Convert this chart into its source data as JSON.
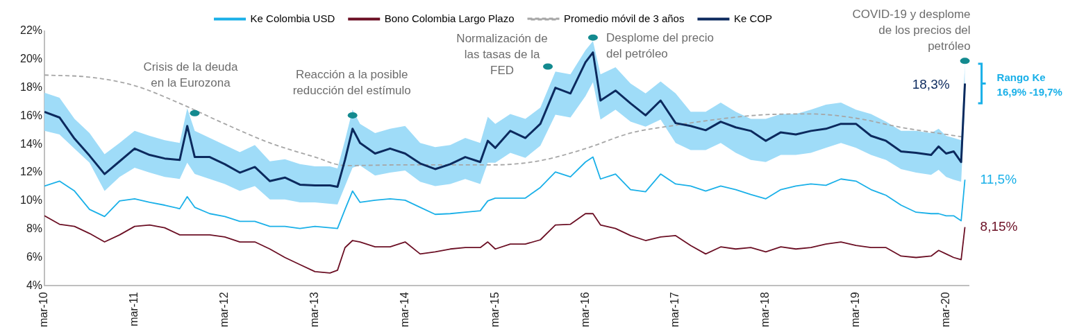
{
  "chart_data": {
    "type": "line",
    "x": [
      "2010-03",
      "2010-05",
      "2010-07",
      "2010-09",
      "2010-11",
      "2011-01",
      "2011-03",
      "2011-05",
      "2011-07",
      "2011-09",
      "2011-10",
      "2011-11",
      "2012-01",
      "2012-03",
      "2012-05",
      "2012-07",
      "2012-09",
      "2012-11",
      "2013-01",
      "2013-03",
      "2013-05",
      "2013-06",
      "2013-07",
      "2013-08",
      "2013-09",
      "2013-11",
      "2014-01",
      "2014-03",
      "2014-05",
      "2014-07",
      "2014-09",
      "2014-11",
      "2015-01",
      "2015-02",
      "2015-03",
      "2015-05",
      "2015-07",
      "2015-09",
      "2015-11",
      "2016-01",
      "2016-03",
      "2016-04",
      "2016-05",
      "2016-07",
      "2016-09",
      "2016-11",
      "2017-01",
      "2017-03",
      "2017-05",
      "2017-07",
      "2017-09",
      "2017-11",
      "2018-01",
      "2018-03",
      "2018-05",
      "2018-07",
      "2018-09",
      "2018-11",
      "2019-01",
      "2019-03",
      "2019-05",
      "2019-07",
      "2019-09",
      "2019-11",
      "2020-01",
      "2020-02",
      "2020-03",
      "2020-04",
      "2020-05",
      "2020-05-16"
    ],
    "series": [
      {
        "name": "Ke Colombia USD",
        "color": "#1ab0e8",
        "values": [
          11.05,
          11.4,
          10.7,
          9.4,
          8.9,
          10.0,
          10.15,
          9.9,
          9.7,
          9.45,
          10.3,
          9.55,
          9.1,
          8.9,
          8.55,
          8.55,
          8.2,
          8.2,
          8.05,
          8.2,
          8.1,
          8.05,
          9.4,
          10.7,
          9.9,
          10.05,
          10.15,
          10.05,
          9.55,
          9.05,
          9.1,
          9.2,
          9.3,
          10.0,
          10.2,
          10.2,
          10.2,
          10.95,
          12.05,
          11.7,
          12.75,
          13.1,
          11.55,
          11.9,
          10.8,
          10.65,
          11.9,
          11.2,
          11.05,
          10.7,
          11.05,
          10.8,
          10.45,
          10.15,
          10.8,
          11.05,
          11.2,
          11.1,
          11.55,
          11.4,
          10.8,
          10.4,
          9.7,
          9.2,
          9.1,
          9.1,
          8.95,
          8.95,
          8.6,
          11.5
        ],
        "value_labels": [
          null,
          null,
          null,
          null,
          null,
          null,
          null,
          null,
          null,
          null,
          null,
          null,
          null,
          null,
          null,
          null,
          null,
          null,
          null,
          null,
          null,
          null,
          null,
          null,
          null,
          null,
          null,
          null,
          null,
          null,
          null,
          null,
          null,
          null,
          null,
          null,
          null,
          null,
          null,
          null,
          null,
          null,
          null,
          null,
          null,
          null,
          null,
          null,
          null,
          null,
          null,
          null,
          null,
          null,
          null,
          null,
          null,
          null,
          null,
          null,
          null,
          null,
          null,
          null,
          null,
          null,
          null,
          null,
          null,
          "11,5%"
        ]
      },
      {
        "name": "Bono Colombia Largo Plazo",
        "color": "#6b0f24",
        "values": [
          8.95,
          8.35,
          8.2,
          7.7,
          7.1,
          7.6,
          8.2,
          8.3,
          8.1,
          7.6,
          7.6,
          7.6,
          7.6,
          7.45,
          7.1,
          7.1,
          6.6,
          6.0,
          5.5,
          5.0,
          4.9,
          5.1,
          6.7,
          7.2,
          7.1,
          6.75,
          6.75,
          7.1,
          6.25,
          6.4,
          6.6,
          6.7,
          6.7,
          7.1,
          6.6,
          6.95,
          6.95,
          7.25,
          8.3,
          8.35,
          9.1,
          9.1,
          8.3,
          8.05,
          7.55,
          7.2,
          7.45,
          7.55,
          6.85,
          6.25,
          6.75,
          6.6,
          6.7,
          6.4,
          6.75,
          6.6,
          6.7,
          6.95,
          7.1,
          6.85,
          6.7,
          6.7,
          6.1,
          6.0,
          6.1,
          6.5,
          6.25,
          6.0,
          5.85,
          8.15
        ],
        "value_labels": [
          null,
          null,
          null,
          null,
          null,
          null,
          null,
          null,
          null,
          null,
          null,
          null,
          null,
          null,
          null,
          null,
          null,
          null,
          null,
          null,
          null,
          null,
          null,
          null,
          null,
          null,
          null,
          null,
          null,
          null,
          null,
          null,
          null,
          null,
          null,
          null,
          null,
          null,
          null,
          null,
          null,
          null,
          null,
          null,
          null,
          null,
          null,
          null,
          null,
          null,
          null,
          null,
          null,
          null,
          null,
          null,
          null,
          null,
          null,
          null,
          null,
          null,
          null,
          null,
          null,
          null,
          null,
          null,
          null,
          "8,15%"
        ]
      },
      {
        "name": "Promedio móvil de 3 años",
        "color": "#a6a6a6",
        "line_style": "dashed",
        "x": [
          "2010-03",
          "2010-09",
          "2011-03",
          "2011-09",
          "2012-03",
          "2012-09",
          "2013-03",
          "2013-07",
          "2014-03",
          "2015-03",
          "2015-09",
          "2016-03",
          "2016-09",
          "2017-03",
          "2017-09",
          "2018-03",
          "2018-09",
          "2019-03",
          "2019-09",
          "2020-03",
          "2020-05-16"
        ],
        "values": [
          18.9,
          18.75,
          18.15,
          16.9,
          15.45,
          14.1,
          13.1,
          12.5,
          12.55,
          12.55,
          12.85,
          13.7,
          14.8,
          15.35,
          15.8,
          16.1,
          16.15,
          15.85,
          15.2,
          14.7,
          14.5
        ]
      },
      {
        "name": "Ke COP",
        "color": "#0c2a5e",
        "values": [
          16.3,
          15.9,
          14.4,
          13.2,
          11.9,
          12.8,
          13.7,
          13.25,
          13.0,
          12.9,
          15.3,
          13.1,
          13.1,
          12.6,
          12.0,
          12.4,
          11.4,
          11.65,
          11.15,
          11.1,
          11.1,
          11.0,
          12.9,
          15.1,
          14.1,
          13.35,
          13.7,
          13.35,
          12.65,
          12.25,
          12.6,
          13.1,
          12.75,
          14.25,
          13.75,
          14.95,
          14.45,
          15.45,
          18.0,
          17.6,
          19.8,
          20.5,
          17.1,
          17.8,
          16.9,
          16.05,
          17.1,
          15.5,
          15.3,
          15.0,
          15.6,
          15.2,
          14.95,
          14.25,
          14.85,
          14.7,
          14.95,
          15.1,
          15.45,
          15.45,
          14.6,
          14.25,
          13.5,
          13.4,
          13.25,
          13.85,
          13.35,
          13.5,
          12.75,
          18.3
        ],
        "upper": [
          17.65,
          17.3,
          15.8,
          14.8,
          13.3,
          14.1,
          14.95,
          14.6,
          14.3,
          14.1,
          16.55,
          14.95,
          14.45,
          13.95,
          13.45,
          13.95,
          12.8,
          12.95,
          12.6,
          12.45,
          12.45,
          12.3,
          14.3,
          16.45,
          15.45,
          14.8,
          15.1,
          15.3,
          14.1,
          13.8,
          13.95,
          14.45,
          14.1,
          15.95,
          15.45,
          16.15,
          15.8,
          16.6,
          19.15,
          18.95,
          20.65,
          21.3,
          18.95,
          19.45,
          18.3,
          17.6,
          18.45,
          17.6,
          16.3,
          16.3,
          16.95,
          16.3,
          15.8,
          15.8,
          16.15,
          16.15,
          16.45,
          16.8,
          16.95,
          16.45,
          16.15,
          15.6,
          14.95,
          14.95,
          14.8,
          15.1,
          14.6,
          14.45,
          14.3,
          19.7
        ],
        "lower": [
          14.95,
          14.7,
          13.7,
          12.7,
          10.7,
          11.7,
          12.35,
          12.0,
          11.7,
          11.55,
          12.7,
          11.9,
          11.55,
          11.2,
          10.7,
          11.05,
          10.1,
          10.1,
          9.9,
          9.9,
          9.8,
          9.75,
          11.05,
          12.35,
          12.5,
          11.8,
          12.0,
          12.15,
          11.35,
          11.05,
          11.2,
          11.55,
          11.2,
          12.7,
          12.7,
          13.4,
          13.05,
          13.9,
          16.1,
          15.9,
          17.4,
          18.4,
          15.75,
          16.45,
          15.6,
          15.25,
          15.75,
          14.1,
          13.6,
          13.6,
          14.1,
          13.4,
          12.9,
          12.75,
          13.25,
          13.25,
          13.4,
          13.75,
          14.1,
          13.75,
          13.25,
          12.9,
          12.25,
          12.0,
          11.85,
          12.2,
          11.7,
          11.5,
          11.35,
          16.9
        ],
        "value_labels": [
          null,
          null,
          null,
          null,
          null,
          null,
          null,
          null,
          null,
          null,
          null,
          null,
          null,
          null,
          null,
          null,
          null,
          null,
          null,
          null,
          null,
          null,
          null,
          null,
          null,
          null,
          null,
          null,
          null,
          null,
          null,
          null,
          null,
          null,
          null,
          null,
          null,
          null,
          null,
          null,
          null,
          null,
          null,
          null,
          null,
          null,
          null,
          null,
          null,
          null,
          null,
          null,
          null,
          null,
          null,
          null,
          null,
          null,
          null,
          null,
          null,
          null,
          null,
          null,
          null,
          null,
          null,
          null,
          null,
          "18,3%"
        ]
      }
    ],
    "annotations": [
      {
        "text": "Crisis de la deuda\nen la Eurozona",
        "x": "2011-11",
        "y": 16.2
      },
      {
        "text": "Reacción a la posible\nreducción del estímulo",
        "x": "2013-08",
        "y": 16.05
      },
      {
        "text": "Normalización de\nlas tasas de la\nFED",
        "x": "2015-10",
        "y": 19.5
      },
      {
        "text": "Desplome del precio\ndel petróleo",
        "x": "2016-04",
        "y": 21.55
      },
      {
        "text": "COVID-19 y desplome\nde los precios del\npetróleo",
        "x": "2020-05-16",
        "y": 19.9
      },
      "Rango Ke\n16,9% -19,7%"
    ],
    "xlim": [
      "2010-03",
      "2020-06"
    ],
    "xticks": [
      {
        "value": "2010-03",
        "label": "mar-10"
      },
      {
        "value": "2011-03",
        "label": "mar-11"
      },
      {
        "value": "2012-03",
        "label": "mar-12"
      },
      {
        "value": "2013-03",
        "label": "mar-13"
      },
      {
        "value": "2014-03",
        "label": "mar-14"
      },
      {
        "value": "2015-03",
        "label": "mar-15"
      },
      {
        "value": "2016-03",
        "label": "mar-16"
      },
      {
        "value": "2017-03",
        "label": "mar-17"
      },
      {
        "value": "2018-03",
        "label": "mar-18"
      },
      {
        "value": "2019-03",
        "label": "mar-19"
      },
      {
        "value": "2020-03",
        "label": "mar-20"
      }
    ],
    "ylim": [
      4,
      22
    ],
    "yticks": [
      {
        "value": 4,
        "label": "4%"
      },
      {
        "value": 6,
        "label": "6%"
      },
      {
        "value": 8,
        "label": "8%"
      },
      {
        "value": 10,
        "label": "10%"
      },
      {
        "value": 12,
        "label": "12%"
      },
      {
        "value": 14,
        "label": "14%"
      },
      {
        "value": 16,
        "label": "16%"
      },
      {
        "value": 18,
        "label": "18%"
      },
      {
        "value": 20,
        "label": "20%"
      },
      {
        "value": 22,
        "label": "22%"
      }
    ],
    "grid": false,
    "legend": "top",
    "marker": "none",
    "line_style": "solid"
  }
}
